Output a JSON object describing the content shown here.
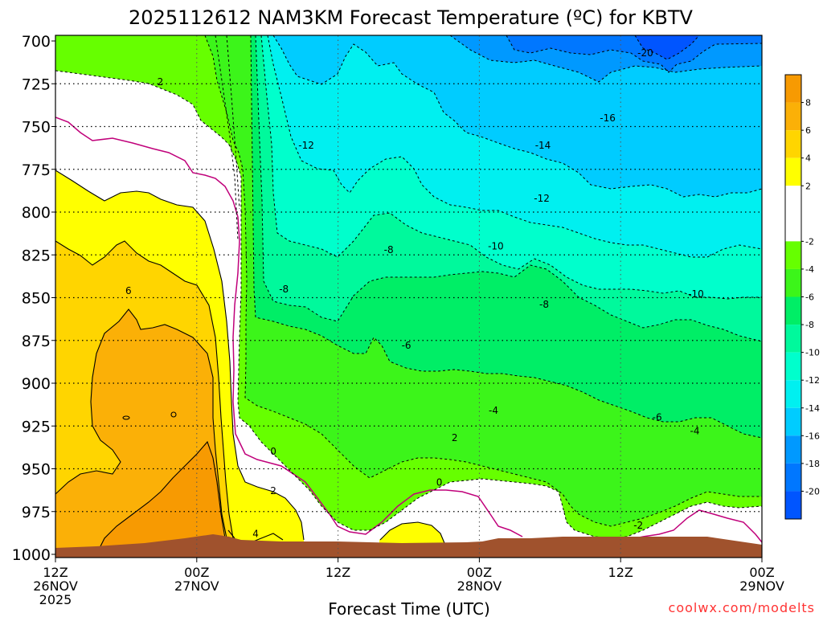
{
  "chart_data": {
    "type": "contour",
    "title": "2025112612 NAM3KM Forecast Temperature (ºC) for KBTV",
    "xlabel": "Forecast Time (UTC)",
    "ylabel": "",
    "credit": "coolwx.com/modelts",
    "x_range_hours": [
      0,
      60
    ],
    "ylim": [
      700,
      1000
    ],
    "y_ticks": [
      700,
      725,
      750,
      775,
      800,
      825,
      850,
      875,
      900,
      925,
      950,
      975,
      1000
    ],
    "x_ticks": [
      {
        "hour": 0,
        "line1": "12Z",
        "line2": "26NOV",
        "line3": "2025"
      },
      {
        "hour": 12,
        "line1": "00Z",
        "line2": "27NOV",
        "line3": ""
      },
      {
        "hour": 24,
        "line1": "12Z",
        "line2": "",
        "line3": ""
      },
      {
        "hour": 36,
        "line1": "00Z",
        "line2": "28NOV",
        "line3": ""
      },
      {
        "hour": 48,
        "line1": "12Z",
        "line2": "",
        "line3": ""
      },
      {
        "hour": 60,
        "line1": "00Z",
        "line2": "29NOV",
        "line3": ""
      }
    ],
    "colorbar": {
      "labels": [
        "8",
        "6",
        "4",
        "2",
        "-2",
        "-4",
        "-6",
        "-8",
        "-10",
        "-12",
        "-14",
        "-16",
        "-18",
        "-20"
      ],
      "bands": [
        {
          "from": 10,
          "to": 8,
          "color": "#f79a02"
        },
        {
          "from": 8,
          "to": 6,
          "color": "#fbb007"
        },
        {
          "from": 6,
          "to": 4,
          "color": "#ffd500"
        },
        {
          "from": 4,
          "to": 2,
          "color": "#ffff00"
        },
        {
          "from": 2,
          "to": -2,
          "color": "#ffffff"
        },
        {
          "from": -2,
          "to": -4,
          "color": "#66ff00"
        },
        {
          "from": -4,
          "to": -6,
          "color": "#3cf51a"
        },
        {
          "from": -6,
          "to": -8,
          "color": "#00ee66"
        },
        {
          "from": -8,
          "to": -10,
          "color": "#00f99c"
        },
        {
          "from": -10,
          "to": -12,
          "color": "#00ffcc"
        },
        {
          "from": -12,
          "to": -14,
          "color": "#00f0f0"
        },
        {
          "from": -14,
          "to": -16,
          "color": "#00ccff"
        },
        {
          "from": -16,
          "to": -18,
          "color": "#0099ff"
        },
        {
          "from": -18,
          "to": -20,
          "color": "#0077ff"
        },
        {
          "from": -20,
          "to": -22,
          "color": "#0055ff"
        }
      ]
    },
    "contour_labels": [
      {
        "text": "2",
        "hour": 8.9,
        "p": 724
      },
      {
        "text": "6",
        "hour": 6.2,
        "p": 846
      },
      {
        "text": "0",
        "hour": 18.5,
        "p": 940
      },
      {
        "text": "2",
        "hour": 18.5,
        "p": 963
      },
      {
        "text": "4",
        "hour": 17.0,
        "p": 988
      },
      {
        "text": "0",
        "hour": 32.6,
        "p": 958
      },
      {
        "text": "2",
        "hour": 33.9,
        "p": 932
      },
      {
        "text": "-2",
        "hour": 49.5,
        "p": 983
      },
      {
        "text": "-4",
        "hour": 37.2,
        "p": 916
      },
      {
        "text": "-4",
        "hour": 54.3,
        "p": 928
      },
      {
        "text": "-6",
        "hour": 29.8,
        "p": 878
      },
      {
        "text": "-6",
        "hour": 51.1,
        "p": 920
      },
      {
        "text": "-8",
        "hour": 19.4,
        "p": 845
      },
      {
        "text": "-8",
        "hour": 28.3,
        "p": 822
      },
      {
        "text": "-8",
        "hour": 41.5,
        "p": 854
      },
      {
        "text": "-10",
        "hour": 37.4,
        "p": 820
      },
      {
        "text": "-10",
        "hour": 54.4,
        "p": 848
      },
      {
        "text": "-12",
        "hour": 21.3,
        "p": 761
      },
      {
        "text": "-12",
        "hour": 41.3,
        "p": 792
      },
      {
        "text": "-14",
        "hour": 41.4,
        "p": 761
      },
      {
        "text": "-16",
        "hour": 46.9,
        "p": 745
      },
      {
        "text": "-20",
        "hour": 50.1,
        "p": 707
      }
    ],
    "surface_color": "#a0522d"
  }
}
